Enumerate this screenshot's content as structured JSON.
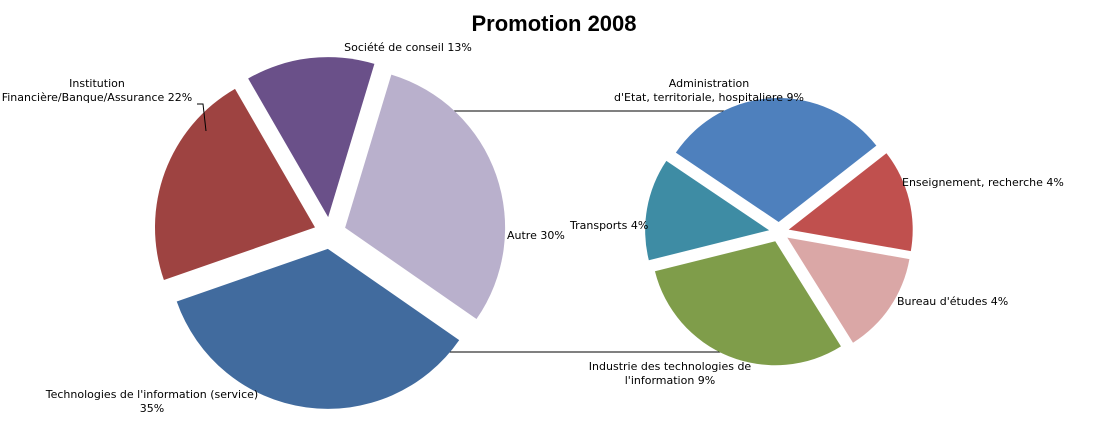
{
  "chart_data": {
    "type": "pie",
    "title": "Promotion 2008",
    "main_pie": {
      "slices": [
        {
          "label_lines": [
            "Société de conseil 13%"
          ],
          "value": 13,
          "color": "#6a5089"
        },
        {
          "label_lines": [
            "Autre 30%"
          ],
          "value": 30,
          "color": "#b9b0cc"
        },
        {
          "label_lines": [
            "Technologies de l'information (service)",
            "35%"
          ],
          "value": 35,
          "color": "#416b9e"
        },
        {
          "label_lines": [
            "Institution",
            "Financière/Banque/Assurance 22%"
          ],
          "value": 22,
          "color": "#9e4341"
        }
      ]
    },
    "secondary_pie": {
      "slices": [
        {
          "label_lines": [
            "Administration",
            "d'Etat, territoriale, hospitaliere 9%"
          ],
          "value": 9,
          "color": "#4e80bd"
        },
        {
          "label_lines": [
            "Enseignement, recherche 4%"
          ],
          "value": 4,
          "color": "#c0504e"
        },
        {
          "label_lines": [
            "Bureau d'études 4%"
          ],
          "value": 4,
          "color": "#daa7a6"
        },
        {
          "label_lines": [
            "Industrie des technologies de",
            "l'information 9%"
          ],
          "value": 9,
          "color": "#7f9d4a"
        },
        {
          "label_lines": [
            "Transports 4%"
          ],
          "value": 4,
          "color": "#3e8ca4"
        }
      ]
    }
  }
}
